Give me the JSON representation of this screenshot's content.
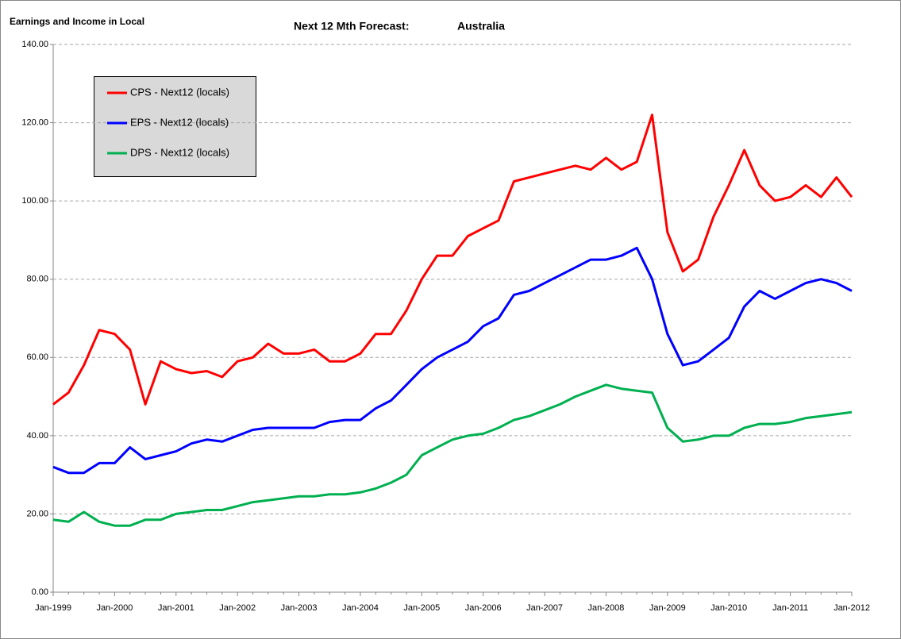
{
  "chart_data": {
    "type": "line",
    "title": "Next 12 Mth Forecast:",
    "subtitle": "Australia",
    "ylabel": "Earnings and Income in Local",
    "categories": [
      "Jan-1999",
      null,
      null,
      null,
      "Jan-2000",
      null,
      null,
      null,
      "Jan-2001",
      null,
      null,
      null,
      "Jan-2002",
      null,
      null,
      null,
      "Jan-2003",
      null,
      null,
      null,
      "Jan-2004",
      null,
      null,
      null,
      "Jan-2005",
      null,
      null,
      null,
      "Jan-2006",
      null,
      null,
      null,
      "Jan-2007",
      null,
      null,
      null,
      "Jan-2008",
      null,
      null,
      null,
      "Jan-2009",
      null,
      null,
      null,
      "Jan-2010",
      null,
      null,
      null,
      "Jan-2011",
      null,
      null,
      null,
      "Jan-2012"
    ],
    "series": [
      {
        "name": "CPS - Next12 (locals)",
        "color": "#ff0000",
        "values": [
          48,
          51,
          58,
          67,
          66,
          62,
          48,
          59,
          57,
          56,
          56.5,
          55,
          59,
          60,
          63.5,
          61,
          61,
          62,
          59,
          59,
          61,
          66,
          66,
          72,
          80,
          86,
          86,
          91,
          93,
          95,
          105,
          106,
          107,
          108,
          109,
          108,
          111,
          108,
          110,
          122,
          92,
          82,
          85,
          96,
          104,
          113,
          104,
          100,
          101,
          104,
          101,
          106,
          101
        ]
      },
      {
        "name": "EPS - Next12 (locals)",
        "color": "#0000ff",
        "values": [
          32,
          30.5,
          30.5,
          33,
          33,
          37,
          34,
          35,
          36,
          38,
          39,
          38.5,
          40,
          41.5,
          42,
          42,
          42,
          42,
          43.5,
          44,
          44,
          47,
          49,
          53,
          57,
          60,
          62,
          64,
          68,
          70,
          76,
          77,
          79,
          81,
          83,
          85,
          85,
          86,
          88,
          80,
          66,
          58,
          59,
          62,
          65,
          73,
          77,
          75,
          77,
          79,
          80,
          79,
          77
        ]
      },
      {
        "name": "DPS - Next12 (locals)",
        "color": "#00b050",
        "values": [
          18.5,
          18,
          20.5,
          18,
          17,
          17,
          18.5,
          18.5,
          20,
          20.5,
          21,
          21,
          22,
          23,
          23.5,
          24,
          24.5,
          24.5,
          25,
          25,
          25.5,
          26.5,
          28,
          30,
          35,
          37,
          39,
          40,
          40.5,
          42,
          44,
          45,
          46.5,
          48,
          50,
          51.5,
          53,
          52,
          51.5,
          51,
          42,
          38.5,
          39,
          40,
          40,
          42,
          43,
          43,
          43.5,
          44.5,
          45,
          45.5,
          46
        ]
      }
    ],
    "ylim": [
      0,
      140
    ],
    "yticks": [
      {
        "value": 0,
        "label": "0.00"
      },
      {
        "value": 20,
        "label": "20.00"
      },
      {
        "value": 40,
        "label": "40.00"
      },
      {
        "value": 60,
        "label": "60.00"
      },
      {
        "value": 80,
        "label": "80.00"
      },
      {
        "value": 100,
        "label": "100.00"
      },
      {
        "value": 120,
        "label": "120.00"
      },
      {
        "value": 140,
        "label": "140.00"
      }
    ],
    "grid": true
  }
}
